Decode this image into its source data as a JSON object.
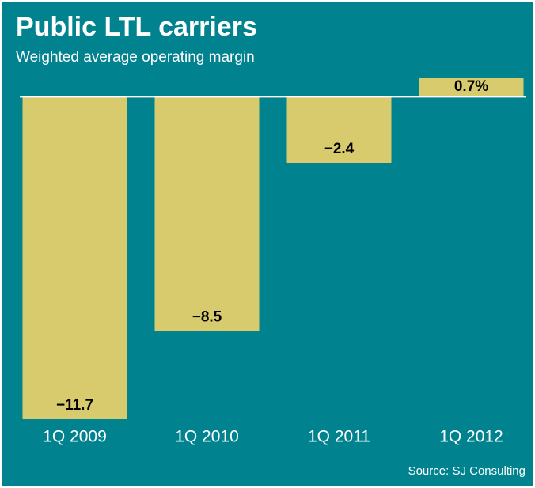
{
  "chart_data": {
    "type": "bar",
    "title": "Public LTL carriers",
    "subtitle": "Weighted average operating margin",
    "categories": [
      "1Q 2009",
      "1Q 2010",
      "1Q 2011",
      "1Q 2012"
    ],
    "values": [
      -11.7,
      -8.5,
      -2.4,
      0.7
    ],
    "value_labels": [
      "−11.7",
      "−8.5",
      "−2.4",
      "0.7%"
    ],
    "color": "#d8cb6e",
    "background": "#00838f",
    "ylim": [
      -11.7,
      0.7
    ],
    "source": "Source: SJ Consulting"
  }
}
